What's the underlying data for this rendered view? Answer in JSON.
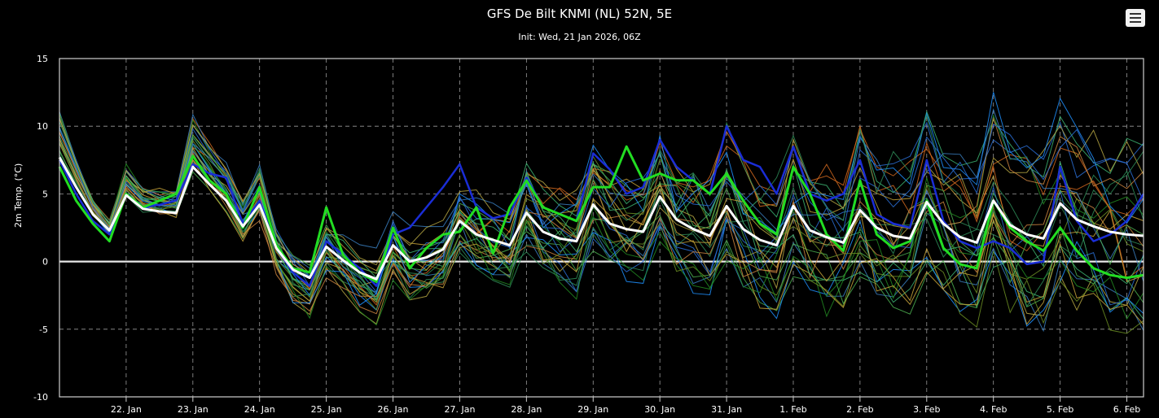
{
  "header": {
    "title": "GFS De Bilt KNMI (NL) 52N, 5E",
    "subtitle": "Init: Wed, 21 Jan 2026, 06Z",
    "menu_icon": "hamburger-menu-icon"
  },
  "chart_data": {
    "type": "line",
    "title": "GFS De Bilt KNMI (NL) 52N, 5E",
    "subtitle": "Init: Wed, 21 Jan 2026, 06Z",
    "xlabel": "",
    "ylabel": "2m Temp. (°C)",
    "ylim": [
      -10,
      15
    ],
    "yticks": [
      -10,
      -5,
      0,
      5,
      10,
      15
    ],
    "xlim": [
      "2026-01-21T12:00",
      "2026-02-06T18:00"
    ],
    "xticks": [
      "22. Jan",
      "23. Jan",
      "24. Jan",
      "25. Jan",
      "26. Jan",
      "27. Jan",
      "28. Jan",
      "29. Jan",
      "30. Jan",
      "31. Jan",
      "1. Feb",
      "2. Feb",
      "3. Feb",
      "4. Feb",
      "5. Feb",
      "6. Feb"
    ],
    "grid": true,
    "zero_line": true,
    "series": [
      {
        "color": "#ffffff",
        "width": 3,
        "x": [
          "2026-01-21T12:00",
          "2026-01-21T18:00",
          "2026-01-22T00:00",
          "2026-01-22T06:00",
          "2026-01-22T12:00",
          "2026-01-22T18:00",
          "2026-01-23T00:00",
          "2026-01-23T06:00",
          "2026-01-23T12:00",
          "2026-01-23T18:00",
          "2026-01-24T00:00",
          "2026-01-24T06:00",
          "2026-01-24T12:00",
          "2026-01-24T18:00",
          "2026-01-25T00:00",
          "2026-01-25T06:00",
          "2026-01-25T12:00",
          "2026-01-25T18:00",
          "2026-01-26T00:00",
          "2026-01-26T06:00",
          "2026-01-26T12:00",
          "2026-01-26T18:00",
          "2026-01-27T00:00",
          "2026-01-27T06:00",
          "2026-01-27T12:00",
          "2026-01-27T18:00",
          "2026-01-28T00:00",
          "2026-01-28T06:00",
          "2026-01-28T12:00",
          "2026-01-28T18:00",
          "2026-01-29T00:00",
          "2026-01-29T06:00",
          "2026-01-29T12:00",
          "2026-01-29T18:00",
          "2026-01-30T00:00",
          "2026-01-30T06:00",
          "2026-01-30T12:00",
          "2026-01-30T18:00",
          "2026-01-31T00:00",
          "2026-01-31T06:00",
          "2026-01-31T12:00",
          "2026-01-31T18:00",
          "2026-02-01T00:00",
          "2026-02-01T06:00",
          "2026-02-01T12:00",
          "2026-02-01T18:00",
          "2026-02-02T00:00",
          "2026-02-02T06:00",
          "2026-02-02T12:00",
          "2026-02-02T18:00",
          "2026-02-03T00:00",
          "2026-02-03T06:00",
          "2026-02-03T12:00",
          "2026-02-03T18:00",
          "2026-02-04T00:00",
          "2026-02-04T06:00",
          "2026-02-04T12:00",
          "2026-02-04T18:00",
          "2026-02-05T00:00",
          "2026-02-05T06:00",
          "2026-02-05T12:00",
          "2026-02-05T18:00",
          "2026-02-06T00:00",
          "2026-02-06T06:00",
          "2026-02-06T12:00",
          "2026-02-06T18:00"
        ],
        "values": [
          7.7,
          5.5,
          3.5,
          2.3,
          4.9,
          3.9,
          3.7,
          3.6,
          7.0,
          5.7,
          4.5,
          2.6,
          4.2,
          1.0,
          -0.6,
          -1.2,
          1.1,
          0.1,
          -0.8,
          -1.3,
          1.2,
          0.0,
          0.3,
          0.9,
          3.0,
          2.0,
          1.6,
          1.2,
          3.6,
          2.2,
          1.7,
          1.5,
          4.2,
          2.8,
          2.4,
          2.2,
          4.8,
          3.1,
          2.4,
          1.9,
          4.1,
          2.4,
          1.6,
          1.2,
          4.1,
          2.3,
          1.8,
          1.4,
          3.8,
          2.5,
          1.9,
          1.7,
          4.4,
          2.8,
          1.8,
          1.4,
          4.5,
          2.7,
          2.0,
          1.7,
          4.3,
          3.1,
          2.6,
          2.2,
          2.0,
          1.9
        ]
      },
      {
        "color": "#22dd22",
        "width": 3,
        "x": [
          "2026-01-21T12:00",
          "2026-01-21T18:00",
          "2026-01-22T00:00",
          "2026-01-22T06:00",
          "2026-01-22T12:00",
          "2026-01-22T18:00",
          "2026-01-23T00:00",
          "2026-01-23T06:00",
          "2026-01-23T12:00",
          "2026-01-23T18:00",
          "2026-01-24T00:00",
          "2026-01-24T06:00",
          "2026-01-24T12:00",
          "2026-01-24T18:00",
          "2026-01-25T00:00",
          "2026-01-25T06:00",
          "2026-01-25T12:00",
          "2026-01-25T18:00",
          "2026-01-26T00:00",
          "2026-01-26T06:00",
          "2026-01-26T12:00",
          "2026-01-26T18:00",
          "2026-01-27T00:00",
          "2026-01-27T06:00",
          "2026-01-27T12:00",
          "2026-01-27T18:00",
          "2026-01-28T00:00",
          "2026-01-28T06:00",
          "2026-01-28T12:00",
          "2026-01-28T18:00",
          "2026-01-29T00:00",
          "2026-01-29T06:00",
          "2026-01-29T12:00",
          "2026-01-29T18:00",
          "2026-01-30T00:00",
          "2026-01-30T06:00",
          "2026-01-30T12:00",
          "2026-01-30T18:00",
          "2026-01-31T00:00",
          "2026-01-31T06:00",
          "2026-01-31T12:00",
          "2026-01-31T18:00",
          "2026-02-01T00:00",
          "2026-02-01T06:00",
          "2026-02-01T12:00",
          "2026-02-01T18:00",
          "2026-02-02T00:00",
          "2026-02-02T06:00",
          "2026-02-02T12:00",
          "2026-02-02T18:00",
          "2026-02-03T00:00",
          "2026-02-03T06:00",
          "2026-02-03T12:00",
          "2026-02-03T18:00",
          "2026-02-04T00:00",
          "2026-02-04T06:00",
          "2026-02-04T12:00",
          "2026-02-04T18:00",
          "2026-02-05T00:00",
          "2026-02-05T06:00",
          "2026-02-05T12:00",
          "2026-02-05T18:00",
          "2026-02-06T00:00",
          "2026-02-06T06:00",
          "2026-02-06T12:00",
          "2026-02-06T18:00"
        ],
        "values": [
          7.0,
          4.5,
          2.8,
          1.5,
          5.0,
          4.0,
          4.5,
          5.0,
          7.8,
          6.0,
          5.0,
          2.5,
          5.5,
          1.2,
          -0.5,
          -0.8,
          4.0,
          0.5,
          -0.8,
          -1.5,
          2.5,
          -0.5,
          1.0,
          2.0,
          2.2,
          4.0,
          0.6,
          4.0,
          6.0,
          4.0,
          3.5,
          3.0,
          5.5,
          5.5,
          8.5,
          6.0,
          6.5,
          6.0,
          6.0,
          5.0,
          6.5,
          4.5,
          2.8,
          2.0,
          7.0,
          5.0,
          2.0,
          0.8,
          6.0,
          2.0,
          1.0,
          1.5,
          4.5,
          1.0,
          -0.2,
          -0.5,
          4.5,
          2.5,
          1.5,
          0.8,
          2.5,
          0.8,
          -0.5,
          -1.0,
          -1.2,
          -1.0
        ]
      },
      {
        "color": "#1a2dd6",
        "width": 2.5,
        "x": [
          "2026-01-21T12:00",
          "2026-01-21T18:00",
          "2026-01-22T00:00",
          "2026-01-22T06:00",
          "2026-01-22T12:00",
          "2026-01-22T18:00",
          "2026-01-23T00:00",
          "2026-01-23T06:00",
          "2026-01-23T12:00",
          "2026-01-23T18:00",
          "2026-01-24T00:00",
          "2026-01-24T06:00",
          "2026-01-24T12:00",
          "2026-01-24T18:00",
          "2026-01-25T00:00",
          "2026-01-25T06:00",
          "2026-01-25T12:00",
          "2026-01-25T18:00",
          "2026-01-26T00:00",
          "2026-01-26T06:00",
          "2026-01-26T12:00",
          "2026-01-26T18:00",
          "2026-01-27T00:00",
          "2026-01-27T06:00",
          "2026-01-27T12:00",
          "2026-01-27T18:00",
          "2026-01-28T00:00",
          "2026-01-28T06:00",
          "2026-01-28T12:00",
          "2026-01-28T18:00",
          "2026-01-29T00:00",
          "2026-01-29T06:00",
          "2026-01-29T12:00",
          "2026-01-29T18:00",
          "2026-01-30T00:00",
          "2026-01-30T06:00",
          "2026-01-30T12:00",
          "2026-01-30T18:00",
          "2026-01-31T00:00",
          "2026-01-31T06:00",
          "2026-01-31T12:00",
          "2026-01-31T18:00",
          "2026-02-01T00:00",
          "2026-02-01T06:00",
          "2026-02-01T12:00",
          "2026-02-01T18:00",
          "2026-02-02T00:00",
          "2026-02-02T06:00",
          "2026-02-02T12:00",
          "2026-02-02T18:00",
          "2026-02-03T00:00",
          "2026-02-03T06:00",
          "2026-02-03T12:00",
          "2026-02-03T18:00",
          "2026-02-04T00:00",
          "2026-02-04T06:00",
          "2026-02-04T12:00",
          "2026-02-04T18:00",
          "2026-02-05T00:00",
          "2026-02-05T06:00",
          "2026-02-05T12:00",
          "2026-02-05T18:00",
          "2026-02-06T00:00",
          "2026-02-06T06:00",
          "2026-02-06T12:00",
          "2026-02-06T18:00"
        ],
        "values": [
          7.5,
          5.0,
          3.0,
          2.0,
          5.0,
          4.0,
          4.2,
          4.5,
          7.2,
          6.5,
          6.2,
          2.8,
          4.5,
          1.0,
          -0.8,
          -1.8,
          1.5,
          0.5,
          -0.5,
          -1.8,
          2.0,
          2.5,
          4.0,
          5.5,
          7.2,
          4.0,
          3.2,
          3.5,
          6.2,
          4.0,
          3.5,
          3.0,
          8.0,
          6.8,
          5.0,
          5.5,
          9.0,
          7.0,
          6.0,
          5.0,
          10.0,
          7.5,
          7.0,
          5.0,
          8.5,
          5.0,
          4.5,
          5.0,
          7.5,
          3.5,
          2.8,
          2.5,
          7.5,
          3.0,
          1.5,
          1.0,
          1.5,
          1.0,
          -0.2,
          0.0,
          7.0,
          3.0,
          1.5,
          2.0,
          3.0,
          5.0
        ]
      }
    ]
  }
}
